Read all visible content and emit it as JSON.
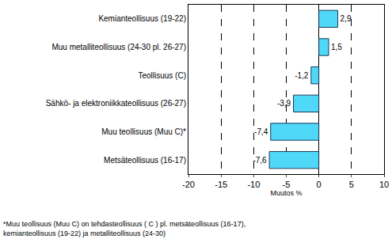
{
  "chart_data": {
    "type": "bar",
    "orientation": "horizontal",
    "categories": [
      "Kemianteollisuus (19-22)",
      "Muu metalliteollisuus (24-30 pl. 26-27)",
      "Teollisuus (C)",
      "Sähkö- ja elektroniikkateollisuus (26-27)",
      "Muu teollisuus (Muu C)*",
      "Metsäteollisuus (16-17)"
    ],
    "values": [
      2.9,
      1.5,
      -1.2,
      -3.9,
      -7.4,
      -7.6
    ],
    "value_labels": [
      "2,9",
      "1,5",
      "-1,2",
      "-3,9",
      "-7,4",
      "-7,6"
    ],
    "data_labels": true,
    "color": "#4fd8f8",
    "x_label": "Muutos %",
    "xlim": [
      -20,
      10
    ],
    "xticks": [
      -20,
      -15,
      -10,
      -5,
      0,
      5,
      10
    ],
    "grid": true,
    "annotations": [
      "*Muu teollisuus (Muu C) on tehdasteollisuus ( C ) pl. metsäteollisuus (16-17),",
      "kemianteollisuus (19-22) ja metalliteollisuus (24-30)"
    ]
  }
}
